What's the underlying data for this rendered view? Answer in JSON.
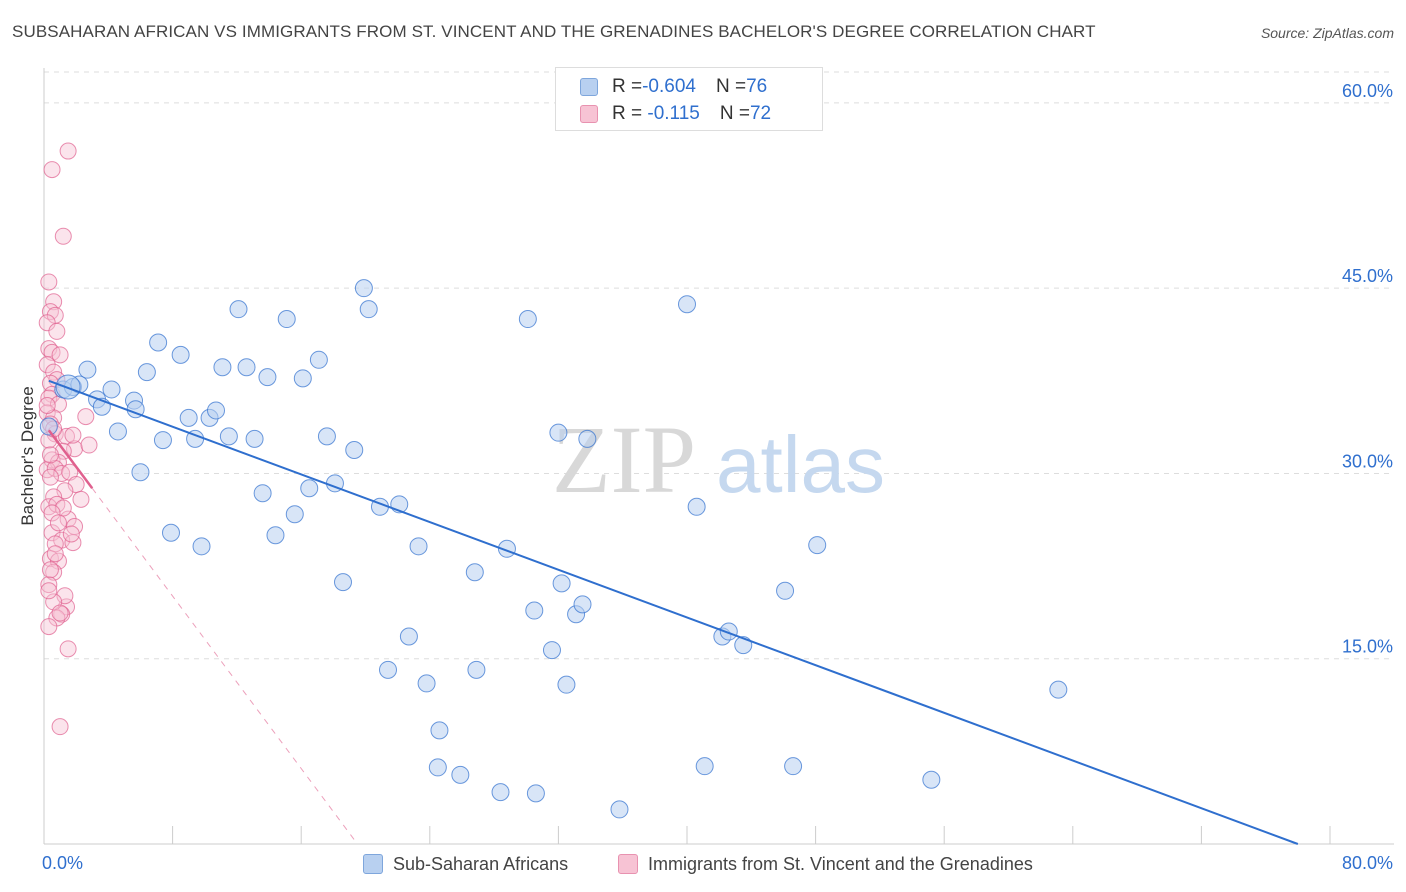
{
  "title": "SUBSAHARAN AFRICAN VS IMMIGRANTS FROM ST. VINCENT AND THE GRENADINES BACHELOR'S DEGREE CORRELATION CHART",
  "source": "Source: ZipAtlas.com",
  "watermark": {
    "zip": "ZIP",
    "atlas": "atlas"
  },
  "colors": {
    "blue": "#2f6fce",
    "blue_fill": "#b8d0f0",
    "pink": "#e0608e",
    "pink_fill": "#f7c3d4",
    "grid": "#dddddd"
  },
  "legend_top": [
    {
      "r_label": "R = ",
      "r_value": "-0.604",
      "n_label": "N = ",
      "n_value": "76"
    },
    {
      "r_label": "R = ",
      "r_value": " -0.115",
      "n_label": "N = ",
      "n_value": "72"
    }
  ],
  "bottom_legend": [
    "Sub-Saharan Africans",
    "Immigrants from St. Vincent and the Grenadines"
  ],
  "chart_data": {
    "type": "scatter",
    "title": "SUBSAHARAN AFRICAN VS IMMIGRANTS FROM ST. VINCENT AND THE GRENADINES BACHELOR'S DEGREE CORRELATION CHART",
    "xlabel": "",
    "ylabel": "Bachelor's Degree",
    "xlim": [
      0,
      80
    ],
    "ylim": [
      0,
      62.5
    ],
    "x_tick_labels": [
      "0.0%",
      "80.0%"
    ],
    "y_tick_labels": [
      "15.0%",
      "30.0%",
      "45.0%",
      "60.0%"
    ],
    "y_ticks": [
      15,
      30,
      45,
      60
    ],
    "grid": true,
    "series": [
      {
        "name": "Sub-Saharan Africans",
        "color": "#2f6fce",
        "r": -0.604,
        "n": 76,
        "trend": {
          "x": [
            0.3,
            78
          ],
          "y": [
            37.5,
            0
          ]
        },
        "points": [
          [
            0.3,
            33.8
          ],
          [
            1.2,
            36.8
          ],
          [
            1.8,
            37.0
          ],
          [
            2.2,
            37.2
          ],
          [
            2.7,
            38.4
          ],
          [
            3.3,
            36.0
          ],
          [
            3.6,
            35.4
          ],
          [
            4.2,
            36.8
          ],
          [
            4.6,
            33.4
          ],
          [
            5.6,
            35.9
          ],
          [
            5.7,
            35.2
          ],
          [
            6.0,
            30.1
          ],
          [
            7.1,
            40.6
          ],
          [
            6.4,
            38.2
          ],
          [
            7.4,
            32.7
          ],
          [
            7.9,
            25.2
          ],
          [
            8.5,
            39.6
          ],
          [
            9.0,
            34.5
          ],
          [
            9.4,
            32.8
          ],
          [
            9.8,
            24.1
          ],
          [
            10.3,
            34.5
          ],
          [
            10.7,
            35.1
          ],
          [
            11.1,
            38.6
          ],
          [
            11.5,
            33.0
          ],
          [
            12.1,
            43.3
          ],
          [
            12.6,
            38.6
          ],
          [
            13.1,
            32.8
          ],
          [
            13.6,
            28.4
          ],
          [
            13.9,
            37.8
          ],
          [
            14.4,
            25.0
          ],
          [
            15.1,
            42.5
          ],
          [
            15.6,
            26.7
          ],
          [
            16.1,
            37.7
          ],
          [
            16.5,
            28.8
          ],
          [
            17.1,
            39.2
          ],
          [
            17.6,
            33.0
          ],
          [
            18.1,
            29.2
          ],
          [
            18.6,
            21.2
          ],
          [
            19.3,
            31.9
          ],
          [
            19.9,
            45.0
          ],
          [
            20.2,
            43.3
          ],
          [
            20.9,
            27.3
          ],
          [
            21.4,
            14.1
          ],
          [
            22.1,
            27.5
          ],
          [
            22.7,
            16.8
          ],
          [
            23.3,
            24.1
          ],
          [
            23.8,
            13.0
          ],
          [
            24.6,
            9.2
          ],
          [
            24.5,
            6.2
          ],
          [
            25.9,
            5.6
          ],
          [
            26.8,
            22.0
          ],
          [
            26.9,
            14.1
          ],
          [
            28.4,
            4.2
          ],
          [
            28.8,
            23.9
          ],
          [
            30.1,
            42.5
          ],
          [
            30.5,
            18.9
          ],
          [
            30.6,
            4.1
          ],
          [
            31.6,
            15.7
          ],
          [
            32.0,
            33.3
          ],
          [
            32.2,
            21.1
          ],
          [
            32.5,
            12.9
          ],
          [
            33.1,
            18.6
          ],
          [
            33.5,
            19.4
          ],
          [
            33.8,
            32.8
          ],
          [
            35.8,
            2.8
          ],
          [
            40.0,
            43.7
          ],
          [
            40.6,
            27.3
          ],
          [
            41.1,
            6.3
          ],
          [
            42.2,
            16.8
          ],
          [
            42.6,
            17.2
          ],
          [
            43.5,
            16.1
          ],
          [
            46.1,
            20.5
          ],
          [
            46.6,
            6.3
          ],
          [
            48.1,
            24.2
          ],
          [
            55.2,
            5.2
          ],
          [
            63.1,
            12.5
          ]
        ]
      },
      {
        "name": "Immigrants from St. Vincent and the Grenadines",
        "color": "#e0608e",
        "r": -0.115,
        "n": 72,
        "trend": {
          "x": [
            0.3,
            3.0
          ],
          "y": [
            33.5,
            28.8
          ]
        },
        "trend_dashed": {
          "x": [
            3.0,
            19.5
          ],
          "y": [
            28.8,
            0
          ]
        },
        "points": [
          [
            0.5,
            54.6
          ],
          [
            1.5,
            56.1
          ],
          [
            1.2,
            49.2
          ],
          [
            0.3,
            45.5
          ],
          [
            0.6,
            43.9
          ],
          [
            0.4,
            43.1
          ],
          [
            0.7,
            42.8
          ],
          [
            0.2,
            42.2
          ],
          [
            0.8,
            41.5
          ],
          [
            0.3,
            40.1
          ],
          [
            0.5,
            39.8
          ],
          [
            1.0,
            39.6
          ],
          [
            0.2,
            38.8
          ],
          [
            0.6,
            38.2
          ],
          [
            0.8,
            37.6
          ],
          [
            0.4,
            37.3
          ],
          [
            0.5,
            36.4
          ],
          [
            0.3,
            36.1
          ],
          [
            0.9,
            35.6
          ],
          [
            0.2,
            34.9
          ],
          [
            0.6,
            34.5
          ],
          [
            0.4,
            34.0
          ],
          [
            2.6,
            34.6
          ],
          [
            0.7,
            33.2
          ],
          [
            1.4,
            33.0
          ],
          [
            0.3,
            32.7
          ],
          [
            1.9,
            32.0
          ],
          [
            1.2,
            31.8
          ],
          [
            2.8,
            32.3
          ],
          [
            0.5,
            31.1
          ],
          [
            0.9,
            30.9
          ],
          [
            0.2,
            30.3
          ],
          [
            0.7,
            30.4
          ],
          [
            1.1,
            30.0
          ],
          [
            1.6,
            30.1
          ],
          [
            0.4,
            29.7
          ],
          [
            2.0,
            29.1
          ],
          [
            1.3,
            28.6
          ],
          [
            0.6,
            28.1
          ],
          [
            2.3,
            27.9
          ],
          [
            0.3,
            27.3
          ],
          [
            0.8,
            27.5
          ],
          [
            1.5,
            26.3
          ],
          [
            1.9,
            25.7
          ],
          [
            0.5,
            25.2
          ],
          [
            1.1,
            24.6
          ],
          [
            0.7,
            24.3
          ],
          [
            1.8,
            24.4
          ],
          [
            0.4,
            23.1
          ],
          [
            0.9,
            22.9
          ],
          [
            0.6,
            22.0
          ],
          [
            0.3,
            21.0
          ],
          [
            1.4,
            19.2
          ],
          [
            1.1,
            18.6
          ],
          [
            0.8,
            18.3
          ],
          [
            0.3,
            17.6
          ],
          [
            1.5,
            15.8
          ],
          [
            1.0,
            9.5
          ],
          [
            0.2,
            35.5
          ],
          [
            0.6,
            33.6
          ],
          [
            1.8,
            33.1
          ],
          [
            0.4,
            31.5
          ],
          [
            1.2,
            27.2
          ],
          [
            0.5,
            26.8
          ],
          [
            0.9,
            26.0
          ],
          [
            1.7,
            25.1
          ],
          [
            0.7,
            23.5
          ],
          [
            0.4,
            22.2
          ],
          [
            1.3,
            20.1
          ],
          [
            0.6,
            19.6
          ],
          [
            1.0,
            18.7
          ],
          [
            0.3,
            20.5
          ]
        ]
      }
    ]
  }
}
